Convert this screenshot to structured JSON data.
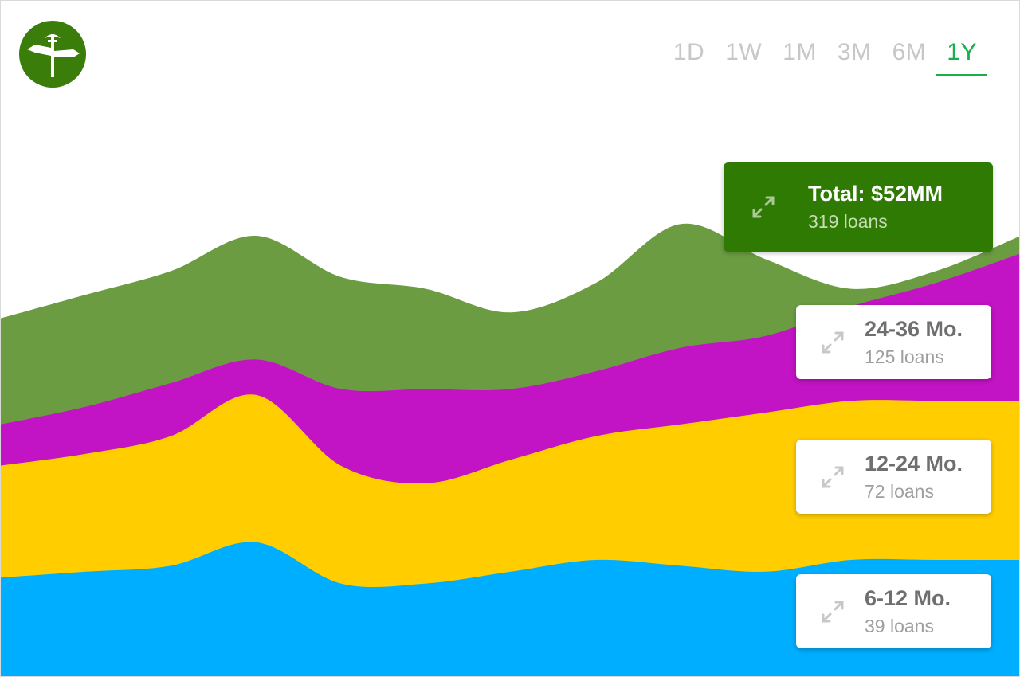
{
  "header": {
    "logo_icon": "signpost-icon",
    "ranges": [
      {
        "label": "1D",
        "active": false
      },
      {
        "label": "1W",
        "active": false
      },
      {
        "label": "1M",
        "active": false
      },
      {
        "label": "3M",
        "active": false
      },
      {
        "label": "6M",
        "active": false
      },
      {
        "label": "1Y",
        "active": true
      }
    ],
    "accent_color": "#18b04a"
  },
  "cards": {
    "total": {
      "title": "Total: $52MM",
      "sub": "319 loans",
      "color": "#2e7a02",
      "icon": "expand-icon"
    },
    "buckets": [
      {
        "title": "24-36 Mo.",
        "sub": "125 loans",
        "icon": "expand-icon"
      },
      {
        "title": "12-24 Mo.",
        "sub": "72 loans",
        "icon": "expand-icon"
      },
      {
        "title": "6-12 Mo.",
        "sub": "39 loans",
        "icon": "expand-icon"
      }
    ]
  },
  "chart_data": {
    "type": "area",
    "stacked": true,
    "x": [
      0,
      1,
      2,
      3,
      4,
      5,
      6,
      7,
      8,
      9,
      10,
      11,
      12
    ],
    "ylim": [
      0,
      100
    ],
    "grid": false,
    "series": [
      {
        "name": "6-12 Mo.",
        "color": "#00aeff",
        "values": [
          17,
          18,
          19,
          23,
          16,
          16,
          18,
          20,
          19,
          18,
          20,
          20,
          20
        ]
      },
      {
        "name": "12-24 Mo.",
        "color": "#ffcd00",
        "values": [
          19,
          20,
          22,
          25,
          20,
          17,
          19,
          21,
          24,
          27,
          27,
          27,
          27
        ]
      },
      {
        "name": "24-36 Mo.",
        "color": "#c213c4",
        "values": [
          7,
          8,
          9,
          6,
          13,
          16,
          12,
          11,
          13,
          13,
          16,
          20,
          25
        ]
      },
      {
        "name": "Total",
        "color": "#6b9c42",
        "values": [
          18,
          19,
          19,
          21,
          19,
          17,
          13,
          15,
          21,
          13,
          3,
          2,
          3
        ]
      }
    ]
  }
}
